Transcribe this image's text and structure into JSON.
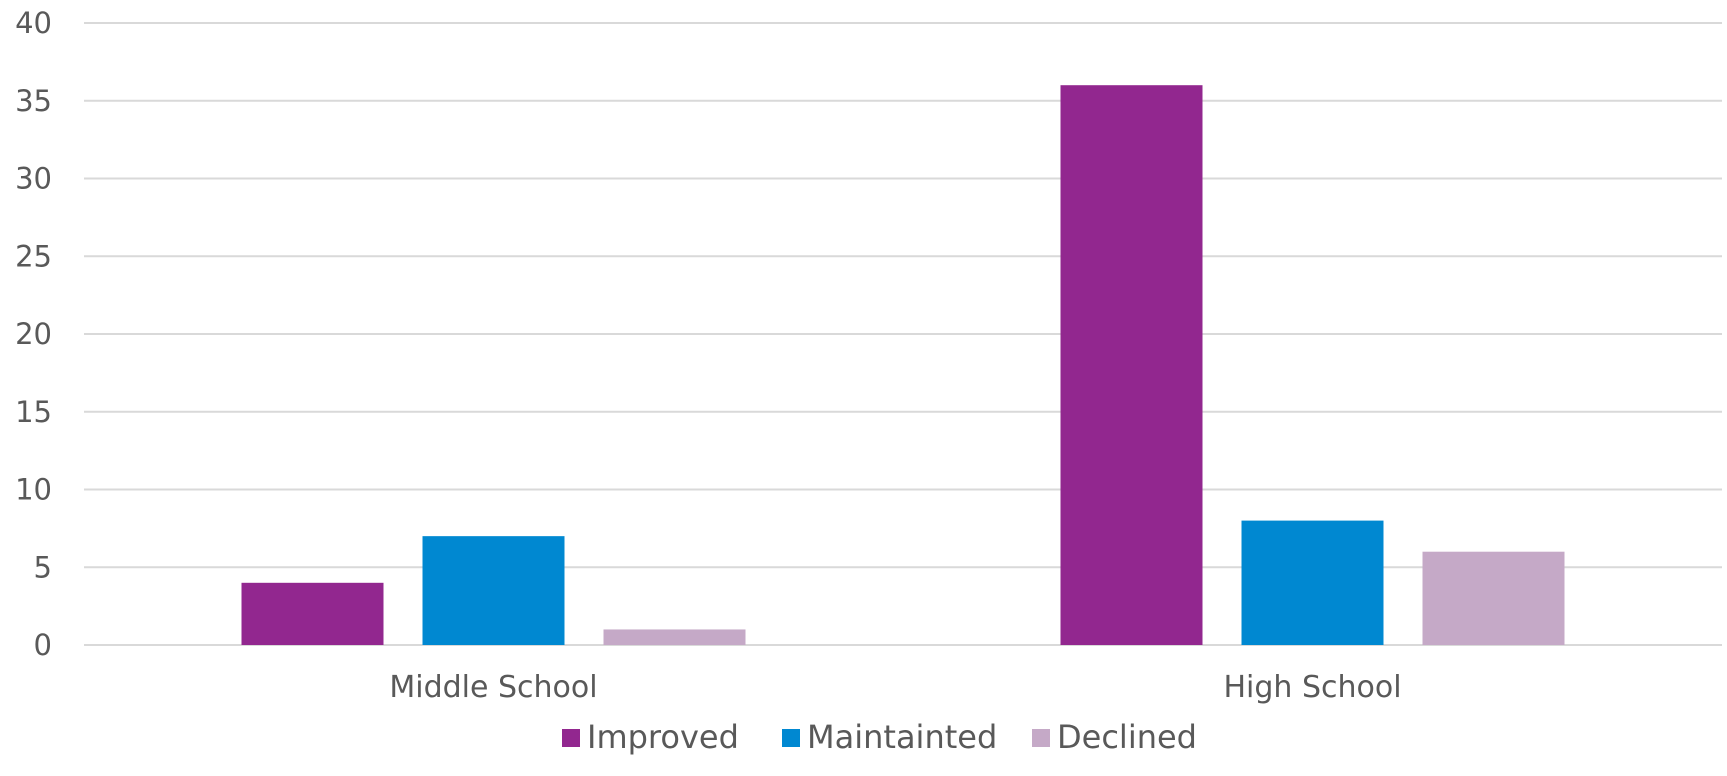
{
  "chart_data": {
    "type": "bar",
    "title": "",
    "xlabel": "",
    "ylabel": "",
    "categories": [
      "Middle School",
      "High School"
    ],
    "series": [
      {
        "name": "Improved",
        "values": [
          4,
          36
        ],
        "color": "#92278f"
      },
      {
        "name": "Maintainted",
        "values": [
          7,
          8
        ],
        "color": "#0088d1"
      },
      {
        "name": "Declined",
        "values": [
          1,
          6
        ],
        "color": "#c5a9c7"
      }
    ],
    "ylim": [
      0,
      40
    ],
    "yticks": [
      "0",
      "5",
      "10",
      "15",
      "20",
      "25",
      "30",
      "35",
      "40"
    ],
    "grid": true,
    "legend_position": "bottom"
  }
}
